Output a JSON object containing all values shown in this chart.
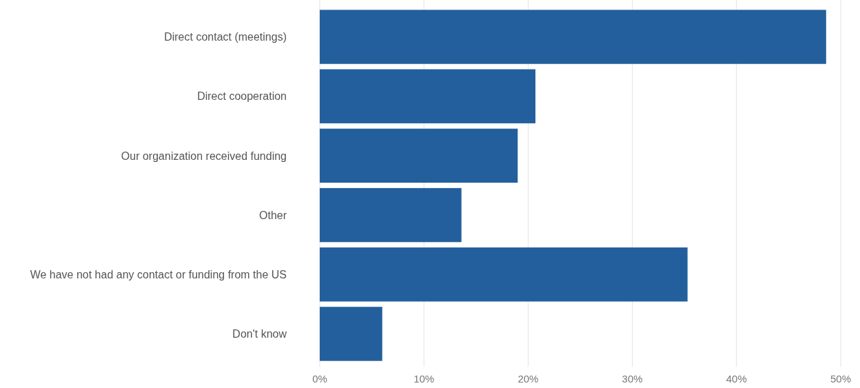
{
  "chart_data": {
    "type": "bar",
    "orientation": "horizontal",
    "categories": [
      "Direct contact (meetings)",
      "Direct cooperation",
      "Our organization received funding",
      "Other",
      "We have not had any contact or funding from the US",
      "Don't know"
    ],
    "values": [
      48.6,
      20.7,
      19.0,
      13.6,
      35.3,
      6.0
    ],
    "color": "#235f9c",
    "xlim": [
      0,
      50
    ],
    "xticks": [
      {
        "value": 0,
        "label": "0%"
      },
      {
        "value": 10,
        "label": "10%"
      },
      {
        "value": 20,
        "label": "20%"
      },
      {
        "value": 30,
        "label": "30%"
      },
      {
        "value": 40,
        "label": "40%"
      },
      {
        "value": 50,
        "label": "50%"
      }
    ],
    "grid": "x"
  }
}
